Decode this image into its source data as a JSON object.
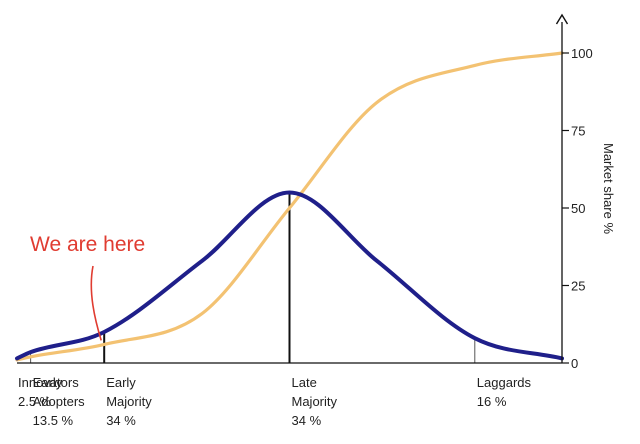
{
  "chart_data": {
    "type": "line",
    "y_axis": {
      "label": "Market share %",
      "ticks": [
        0,
        25,
        50,
        75,
        100
      ],
      "ylim": [
        0,
        100
      ],
      "position": "right"
    },
    "x_range": [
      0,
      100
    ],
    "segments": [
      {
        "lines": [
          "Innovators",
          "2.5 %"
        ],
        "start": 0
      },
      {
        "lines": [
          "Early",
          "Adopters",
          "13.5 %"
        ],
        "start": 2.5
      },
      {
        "lines": [
          "Early",
          "Majority",
          "34 %"
        ],
        "start": 16
      },
      {
        "lines": [
          "Late",
          "Majority",
          "34 %"
        ],
        "start": 50
      },
      {
        "lines": [
          "Laggards",
          "16 %"
        ],
        "start": 84
      }
    ],
    "series": [
      {
        "kind": "adoption-curve",
        "color": "#1f1f8a",
        "x": [
          0,
          2.5,
          16,
          34,
          50,
          66,
          84,
          100
        ],
        "y": [
          1.5,
          3.5,
          10,
          33,
          55,
          33,
          8,
          1.5
        ]
      },
      {
        "kind": "cumulative-market-share",
        "color": "#f3c272",
        "x": [
          0,
          2.5,
          16,
          34,
          50,
          66,
          84,
          100
        ],
        "y": [
          1,
          2,
          6,
          16,
          50,
          84,
          96,
          100
        ]
      }
    ],
    "annotation": {
      "text": "We are here",
      "color": "#e03c31",
      "x": 16,
      "y": 6
    }
  }
}
